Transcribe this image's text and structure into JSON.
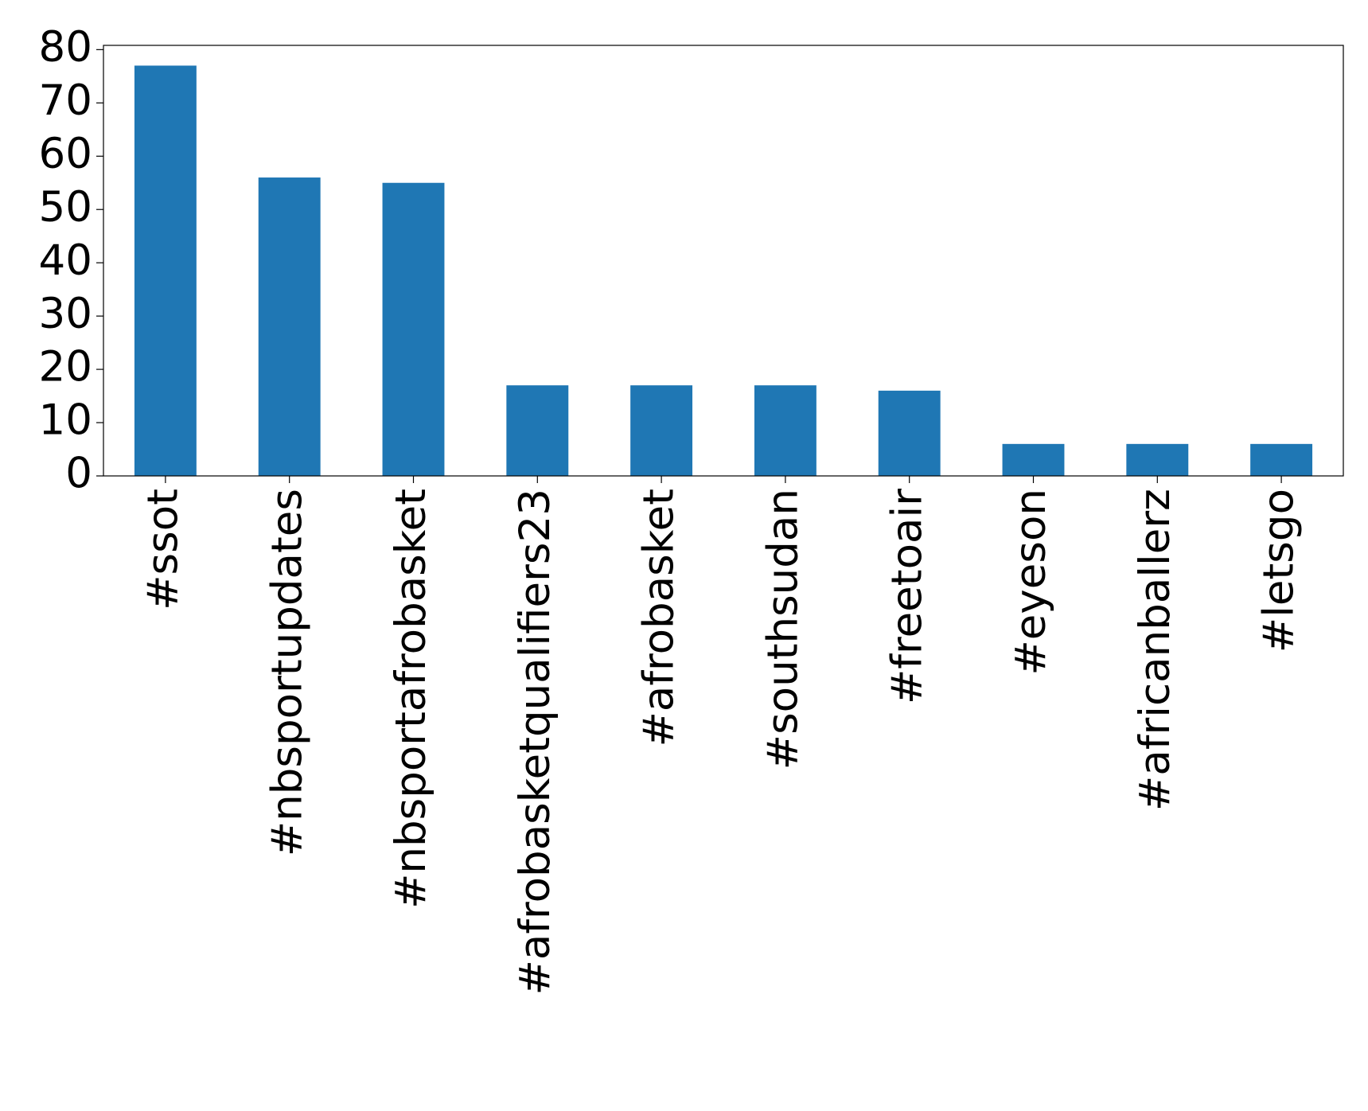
{
  "chart_data": {
    "type": "bar",
    "categories": [
      "#ssot",
      "#nbsportupdates",
      "#nbsportafrobasket",
      "#afrobasketqualifiers23",
      "#afrobasket",
      "#southsudan",
      "#freetoair",
      "#eyeson",
      "#africanballerz",
      "#letsgo"
    ],
    "values": [
      77,
      56,
      55,
      17,
      17,
      17,
      16,
      6,
      6,
      6
    ],
    "color": "#1f77b4",
    "ylim": [
      0,
      80.8
    ],
    "yticks": [
      0,
      10,
      20,
      30,
      40,
      50,
      60,
      70,
      80
    ],
    "grid": false
  }
}
